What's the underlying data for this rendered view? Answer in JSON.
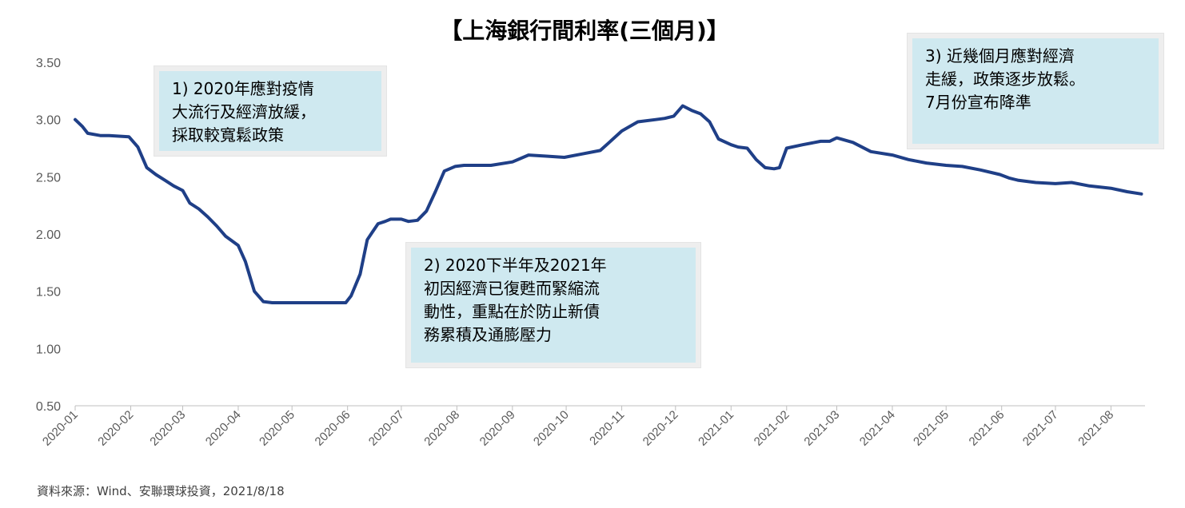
{
  "chart_data": {
    "type": "line",
    "title": "【上海銀行間利率(三個月)】",
    "xlabel": "",
    "ylabel": "",
    "ylim": [
      0.5,
      3.5
    ],
    "yticks": [
      "3.50",
      "3.00",
      "2.50",
      "2.00",
      "1.50",
      "1.00",
      "0.50"
    ],
    "xticks": [
      "2020-01",
      "2020-02",
      "2020-03",
      "2020-04",
      "2020-05",
      "2020-06",
      "2020-07",
      "2020-08",
      "2020-09",
      "2020-10",
      "2020-11",
      "2020-12",
      "2021-01",
      "2021-02",
      "2021-03",
      "2021-04",
      "2021-05",
      "2021-06",
      "2021-07",
      "2021-08"
    ],
    "grid": false,
    "series": [
      {
        "color": "#1f3f87",
        "x": [
          "2020-01-01",
          "2020-01-05",
          "2020-01-08",
          "2020-01-15",
          "2020-01-20",
          "2020-01-31",
          "2020-02-05",
          "2020-02-10",
          "2020-02-15",
          "2020-02-20",
          "2020-02-25",
          "2020-03-01",
          "2020-03-05",
          "2020-03-10",
          "2020-03-15",
          "2020-03-20",
          "2020-03-25",
          "2020-04-01",
          "2020-04-05",
          "2020-04-10",
          "2020-04-15",
          "2020-04-20",
          "2020-04-25",
          "2020-05-01",
          "2020-05-10",
          "2020-05-20",
          "2020-05-31",
          "2020-06-03",
          "2020-06-08",
          "2020-06-12",
          "2020-06-15",
          "2020-06-18",
          "2020-06-22",
          "2020-06-25",
          "2020-07-01",
          "2020-07-05",
          "2020-07-10",
          "2020-07-15",
          "2020-07-20",
          "2020-07-25",
          "2020-07-31",
          "2020-08-05",
          "2020-08-10",
          "2020-08-20",
          "2020-09-01",
          "2020-09-10",
          "2020-09-20",
          "2020-09-30",
          "2020-10-10",
          "2020-10-20",
          "2020-10-25",
          "2020-11-01",
          "2020-11-10",
          "2020-11-20",
          "2020-11-25",
          "2020-11-30",
          "2020-12-05",
          "2020-12-10",
          "2020-12-15",
          "2020-12-20",
          "2020-12-25",
          "2021-01-01",
          "2021-01-05",
          "2021-01-10",
          "2021-01-15",
          "2021-01-20",
          "2021-01-25",
          "2021-01-28",
          "2021-02-01",
          "2021-02-10",
          "2021-02-20",
          "2021-02-25",
          "2021-03-01",
          "2021-03-10",
          "2021-03-20",
          "2021-04-01",
          "2021-04-10",
          "2021-04-20",
          "2021-05-01",
          "2021-05-10",
          "2021-05-20",
          "2021-05-31",
          "2021-06-05",
          "2021-06-10",
          "2021-06-20",
          "2021-07-01",
          "2021-07-10",
          "2021-07-20",
          "2021-08-01",
          "2021-08-10",
          "2021-08-18"
        ],
        "values": [
          3.0,
          2.94,
          2.88,
          2.86,
          2.86,
          2.85,
          2.76,
          2.58,
          2.52,
          2.47,
          2.42,
          2.38,
          2.27,
          2.22,
          2.15,
          2.07,
          1.98,
          1.9,
          1.76,
          1.5,
          1.41,
          1.4,
          1.4,
          1.4,
          1.4,
          1.4,
          1.4,
          1.46,
          1.65,
          1.95,
          2.02,
          2.09,
          2.11,
          2.13,
          2.13,
          2.11,
          2.12,
          2.2,
          2.37,
          2.55,
          2.59,
          2.6,
          2.6,
          2.6,
          2.63,
          2.69,
          2.68,
          2.67,
          2.7,
          2.73,
          2.8,
          2.9,
          2.98,
          3.0,
          3.01,
          3.03,
          3.12,
          3.08,
          3.05,
          2.98,
          2.83,
          2.78,
          2.76,
          2.75,
          2.65,
          2.58,
          2.57,
          2.58,
          2.75,
          2.78,
          2.81,
          2.81,
          2.84,
          2.8,
          2.72,
          2.69,
          2.65,
          2.62,
          2.6,
          2.59,
          2.56,
          2.52,
          2.49,
          2.47,
          2.45,
          2.44,
          2.45,
          2.42,
          2.4,
          2.37,
          2.35
        ]
      }
    ],
    "annotations": [
      [
        "1) 2020年應對疫情",
        "大流行及經濟放緩，",
        "採取較寬鬆政策"
      ],
      [
        "2) 2020下半年及2021年",
        "初因經濟已復甦而緊縮流",
        "動性，重點在於防止新債",
        "務累積及通膨壓力"
      ],
      [
        "3) 近幾個月應對經濟",
        "走緩，政策逐步放鬆。",
        "7月份宣布降準"
      ]
    ],
    "source": "資料來源：Wind、安聯環球投資，2021/8/18"
  }
}
